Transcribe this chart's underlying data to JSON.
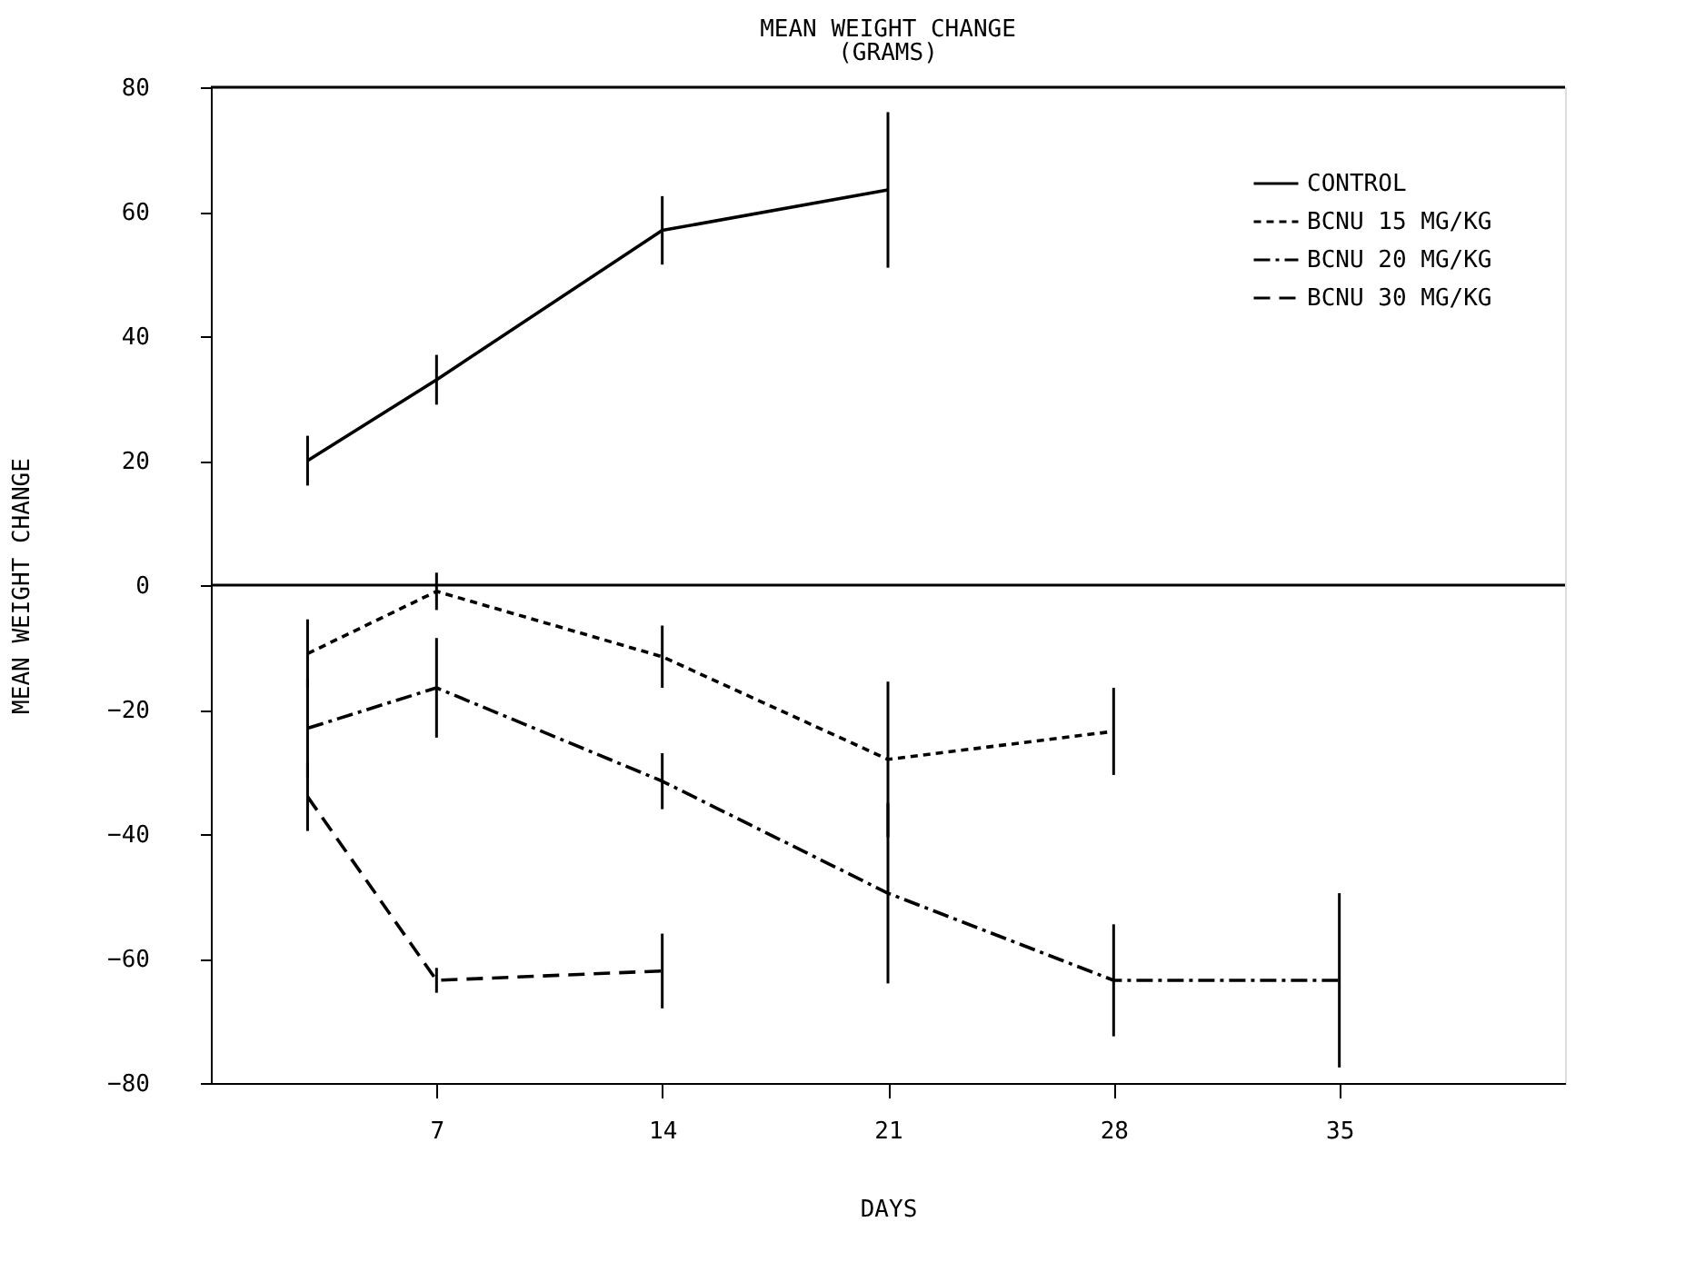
{
  "chart_data": {
    "type": "line",
    "title": "MEAN WEIGHT CHANGE",
    "subtitle": "(GRAMS)",
    "xlabel": "DAYS",
    "ylabel": "MEAN WEIGHT CHANGE",
    "x": [
      3,
      7,
      14,
      21,
      28,
      35
    ],
    "series": [
      {
        "name": "CONTROL",
        "color": "#000000",
        "line_style": "solid",
        "values": [
          20,
          33,
          57,
          63.5,
          null,
          null
        ],
        "errors": [
          4,
          4,
          5.5,
          12.5,
          null,
          null
        ]
      },
      {
        "name": "BCNU 15 MG/KG",
        "color": "#000000",
        "line_style": "dotted",
        "values": [
          -11,
          -1,
          -11.5,
          -28,
          -23.5,
          null
        ],
        "errors": [
          5.5,
          3,
          5,
          12.5,
          7,
          null
        ]
      },
      {
        "name": "BCNU 20 MG/KG",
        "color": "#000000",
        "line_style": "dashdot",
        "values": [
          -23,
          -16.5,
          -31.5,
          -49.5,
          -63.5,
          -63.5
        ],
        "errors": [
          8,
          8,
          4.5,
          14.5,
          9,
          14
        ]
      },
      {
        "name": "BCNU 30 MG/KG",
        "color": "#000000",
        "line_style": "dashed",
        "values": [
          -34,
          -63.5,
          -62,
          null,
          null,
          null
        ],
        "errors": [
          5.5,
          2,
          6,
          null,
          null,
          null
        ]
      }
    ],
    "xlim": [
      0,
      42
    ],
    "xticks": [
      7,
      14,
      21,
      28,
      35
    ],
    "ylim": [
      -80,
      80
    ],
    "yticks": [
      -80,
      -60,
      -40,
      -20,
      0,
      20,
      40,
      60,
      80
    ],
    "ref_lines": [
      {
        "axis": "y",
        "value": 0
      }
    ],
    "grid": false,
    "legend": "top right",
    "marker": "none"
  }
}
